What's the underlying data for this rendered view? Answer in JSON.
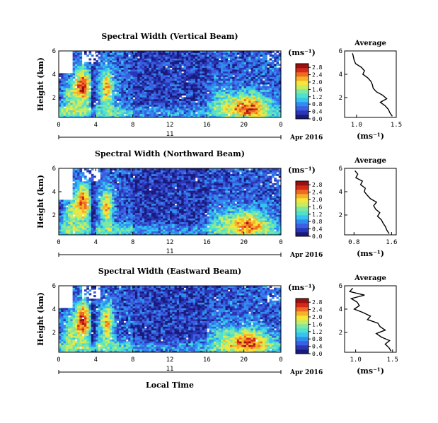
{
  "figure": {
    "x_label": "Local Time",
    "date_label": "Apr 2016",
    "date_day": "11",
    "colors": {
      "colormap": [
        "#1a1a7a",
        "#2a36b8",
        "#3b5fe0",
        "#2f8df0",
        "#35c3f0",
        "#4fe0d0",
        "#7fe8a0",
        "#c8ec60",
        "#f5e63a",
        "#f7b02a",
        "#ef6a22",
        "#d42818",
        "#9a1010"
      ],
      "average_line": "#000000",
      "background": "#ffffff"
    }
  },
  "chart_data": [
    {
      "type": "heatmap",
      "title": "Spectral Width (Vertical Beam)",
      "ylabel": "Height (km)",
      "x_ticks": [
        "0",
        "4",
        "8",
        "12",
        "16",
        "20",
        "0"
      ],
      "y_ticks": [
        "2",
        "4",
        "6"
      ],
      "xlim": [
        0,
        24
      ],
      "ylim": [
        0.3,
        6
      ],
      "colorbar": {
        "unit": "(ms⁻¹)",
        "ticks": [
          "0.0",
          "0.4",
          "0.8",
          "1.2",
          "1.6",
          "2.0",
          "2.4",
          "2.8"
        ],
        "range": [
          0,
          3.0
        ]
      },
      "average": {
        "title": "Average",
        "x_ticks": [
          "1.0",
          "1.5"
        ],
        "xlim": [
          0.85,
          1.5
        ],
        "unit": "(ms⁻¹)",
        "heights": [
          0.4,
          0.7,
          1.0,
          1.3,
          1.6,
          1.9,
          2.2,
          2.5,
          2.8,
          3.1,
          3.4,
          3.7,
          4.0,
          4.3,
          4.6,
          4.9,
          5.2,
          5.5,
          5.8
        ],
        "values": [
          1.45,
          1.42,
          1.4,
          1.36,
          1.3,
          1.38,
          1.33,
          1.25,
          1.21,
          1.2,
          1.18,
          1.14,
          1.08,
          1.1,
          1.06,
          0.99,
          0.97,
          0.96,
          0.95
        ]
      }
    },
    {
      "type": "heatmap",
      "title": "Spectral Width (Northward Beam)",
      "ylabel": "Height (km)",
      "x_ticks": [
        "0",
        "4",
        "8",
        "12",
        "16",
        "20",
        "0"
      ],
      "y_ticks": [
        "2",
        "4",
        "6"
      ],
      "xlim": [
        0,
        24
      ],
      "ylim": [
        0.3,
        6
      ],
      "colorbar": {
        "unit": "(ms⁻¹)",
        "ticks": [
          "0.0",
          "0.4",
          "0.8",
          "1.2",
          "1.6",
          "2.0",
          "2.4",
          "2.8"
        ],
        "range": [
          0,
          3.0
        ]
      },
      "average": {
        "title": "Average",
        "x_ticks": [
          "0.8",
          "1.6"
        ],
        "xlim": [
          0.6,
          1.7
        ],
        "unit": "(ms⁻¹)",
        "heights": [
          0.4,
          0.7,
          1.0,
          1.3,
          1.6,
          1.9,
          2.2,
          2.5,
          2.8,
          3.1,
          3.4,
          3.7,
          4.0,
          4.3,
          4.6,
          4.9,
          5.2,
          5.5,
          5.8
        ],
        "values": [
          1.55,
          1.5,
          1.47,
          1.42,
          1.38,
          1.3,
          1.35,
          1.26,
          1.22,
          1.28,
          1.15,
          1.08,
          1.02,
          1.04,
          0.94,
          0.98,
          0.84,
          0.88,
          0.82
        ]
      }
    },
    {
      "type": "heatmap",
      "title": "Spectral Width (Eastward Beam)",
      "ylabel": "Height (km)",
      "x_ticks": [
        "0",
        "4",
        "8",
        "12",
        "16",
        "20",
        "0"
      ],
      "y_ticks": [
        "2",
        "4",
        "6"
      ],
      "xlim": [
        0,
        24
      ],
      "ylim": [
        0.3,
        6
      ],
      "colorbar": {
        "unit": "(ms⁻¹)",
        "ticks": [
          "0.0",
          "0.4",
          "0.8",
          "1.2",
          "1.6",
          "2.0",
          "2.4",
          "2.8"
        ],
        "range": [
          0,
          3.0
        ]
      },
      "average": {
        "title": "Average",
        "x_ticks": [
          "1.0",
          "1.5"
        ],
        "xlim": [
          0.85,
          1.55
        ],
        "unit": "(ms⁻¹)",
        "heights": [
          0.4,
          0.7,
          1.0,
          1.3,
          1.6,
          1.9,
          2.2,
          2.5,
          2.8,
          3.1,
          3.4,
          3.7,
          4.0,
          4.3,
          4.6,
          4.9,
          5.2,
          5.5,
          5.8
        ],
        "values": [
          1.48,
          1.45,
          1.4,
          1.46,
          1.35,
          1.28,
          1.4,
          1.33,
          1.3,
          1.16,
          1.2,
          1.1,
          0.98,
          1.05,
          1.02,
          0.94,
          1.12,
          0.92,
          0.96
        ]
      }
    }
  ]
}
